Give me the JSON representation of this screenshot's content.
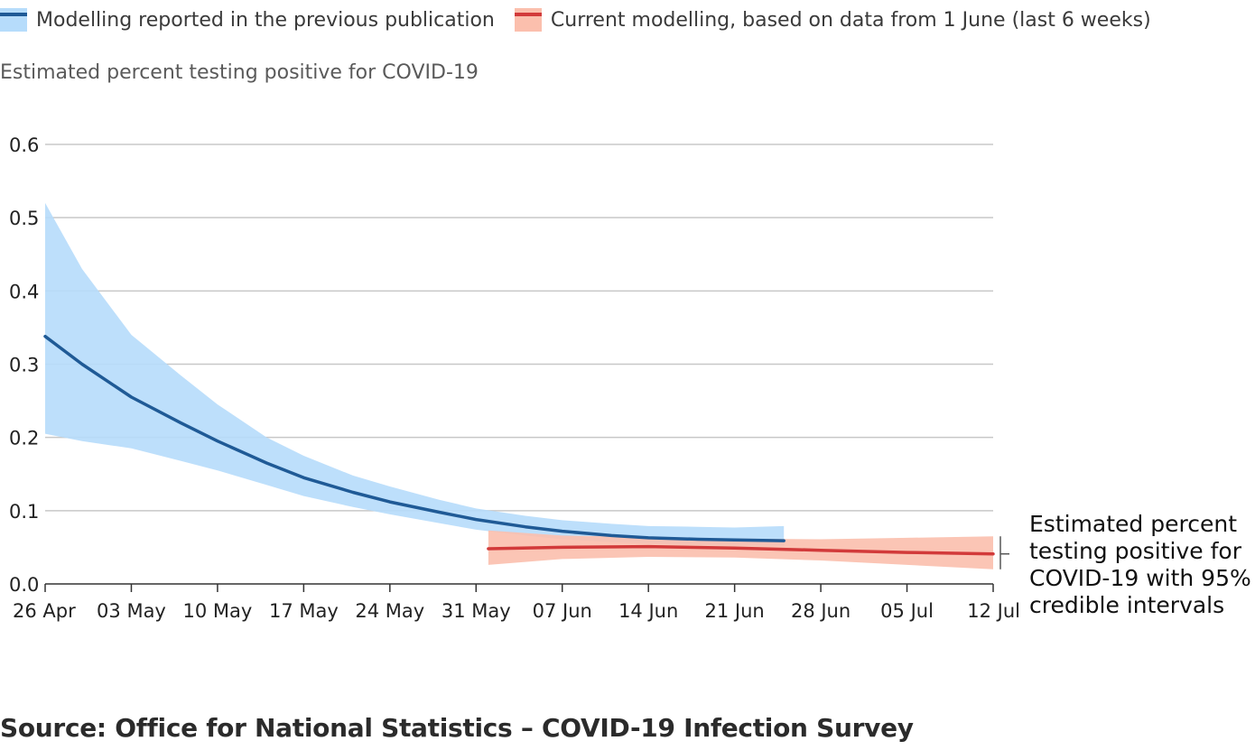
{
  "legend": {
    "previous_label": "Modelling reported in the previous publication",
    "current_label": "Current modelling, based on data from 1 June (last 6 weeks)"
  },
  "colors": {
    "previous_line": "#1f5a96",
    "previous_band": "#b6dcfb",
    "current_line": "#d23a3a",
    "current_band": "#fbbfad",
    "grid": "#c8c8c8",
    "axis": "#333333"
  },
  "annotation": "Estimated percent\ntesting positive for\nCOVID-19 with 95%\ncredible intervals",
  "source": "Source: Office for National Statistics – COVID-19 Infection Survey",
  "chart_data": {
    "type": "line",
    "title": "",
    "ylabel": "Estimated percent testing positive for COVID-19",
    "xlabel": "",
    "ylim": [
      0,
      0.6
    ],
    "yticks": [
      0.0,
      0.1,
      0.2,
      0.3,
      0.4,
      0.5,
      0.6
    ],
    "ytick_labels": [
      "0.0",
      "0.1",
      "0.2",
      "0.3",
      "0.4",
      "0.5",
      "0.6"
    ],
    "xlim": [
      "2021-04-26",
      "2021-07-12"
    ],
    "xticks": [
      "2021-04-26",
      "2021-05-03",
      "2021-05-10",
      "2021-05-17",
      "2021-05-24",
      "2021-05-31",
      "2021-06-07",
      "2021-06-14",
      "2021-06-21",
      "2021-06-28",
      "2021-07-05",
      "2021-07-12"
    ],
    "xtick_labels": [
      "26 Apr",
      "03 May",
      "10 May",
      "17 May",
      "24 May",
      "31 May",
      "07 Jun",
      "14 Jun",
      "21 Jun",
      "28 Jun",
      "05 Jul",
      "12 Jul"
    ],
    "grid": true,
    "legend_position": "top-left",
    "series": [
      {
        "name": "Modelling reported in the previous publication",
        "x": [
          "2021-04-26",
          "2021-04-29",
          "2021-05-03",
          "2021-05-07",
          "2021-05-10",
          "2021-05-14",
          "2021-05-17",
          "2021-05-21",
          "2021-05-24",
          "2021-05-28",
          "2021-05-31",
          "2021-06-04",
          "2021-06-07",
          "2021-06-11",
          "2021-06-14",
          "2021-06-18",
          "2021-06-21",
          "2021-06-25"
        ],
        "y": [
          0.338,
          0.3,
          0.255,
          0.22,
          0.195,
          0.165,
          0.145,
          0.125,
          0.112,
          0.098,
          0.088,
          0.078,
          0.072,
          0.066,
          0.063,
          0.061,
          0.06,
          0.059
        ],
        "lower": [
          0.205,
          0.195,
          0.185,
          0.168,
          0.155,
          0.135,
          0.12,
          0.105,
          0.095,
          0.083,
          0.074,
          0.066,
          0.061,
          0.057,
          0.055,
          0.053,
          0.052,
          0.052
        ],
        "upper": [
          0.52,
          0.43,
          0.34,
          0.285,
          0.245,
          0.2,
          0.175,
          0.148,
          0.133,
          0.115,
          0.103,
          0.093,
          0.087,
          0.082,
          0.079,
          0.078,
          0.077,
          0.079
        ]
      },
      {
        "name": "Current modelling, based on data from 1 June (last 6 weeks)",
        "x": [
          "2021-06-01",
          "2021-06-07",
          "2021-06-14",
          "2021-06-21",
          "2021-06-28",
          "2021-07-05",
          "2021-07-12"
        ],
        "y": [
          0.048,
          0.05,
          0.051,
          0.049,
          0.046,
          0.043,
          0.041
        ],
        "lower": [
          0.026,
          0.034,
          0.037,
          0.036,
          0.032,
          0.026,
          0.02
        ],
        "upper": [
          0.073,
          0.066,
          0.064,
          0.062,
          0.061,
          0.063,
          0.065
        ]
      }
    ]
  }
}
